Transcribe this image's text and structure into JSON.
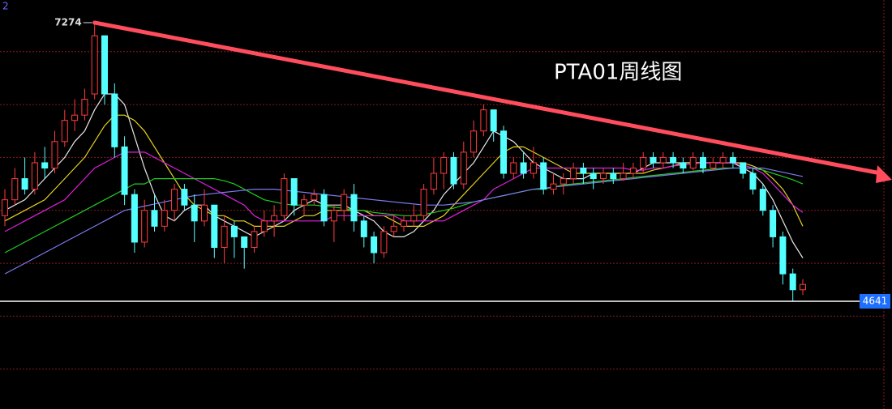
{
  "chart_data": {
    "type": "candlestick",
    "title": "PTA01周线图",
    "panel_id": "2",
    "high_label": "7274",
    "last_label": "4641",
    "ylim": [
      3623,
      7488
    ],
    "grid_lines": [
      7000,
      6500,
      6000,
      5500,
      5000,
      4500,
      4000
    ],
    "up_color": "#ff3b3b",
    "down_color": "#54ffff",
    "open": [
      5450,
      5600,
      5800,
      5700,
      5950,
      5900,
      6150,
      6350,
      6400,
      6600,
      7150,
      6600,
      6100,
      5650,
      5200,
      5500,
      5350,
      5500,
      5700,
      5550,
      5400,
      5550,
      5150,
      5350,
      5250,
      5150,
      5300,
      5400,
      5450,
      5800,
      5550,
      5600,
      5650,
      5400,
      5500,
      5650,
      5400,
      5250,
      5100,
      5300,
      5350,
      5400,
      5450,
      5700,
      5850,
      6000,
      5750,
      6050,
      6250,
      6450,
      6250,
      5850,
      5950,
      5850,
      5950,
      5700,
      5750,
      5800,
      5900,
      5850,
      5800,
      5850,
      5800,
      5850,
      5900,
      6000,
      5950,
      6000,
      5950,
      5900,
      6000,
      5900,
      5950,
      6000,
      5950,
      5850,
      5700,
      5500,
      5250,
      4900,
      4750
    ],
    "high": [
      5700,
      5900,
      6000,
      6050,
      6100,
      6250,
      6450,
      6550,
      6650,
      7274,
      7150,
      6700,
      6200,
      5700,
      5600,
      5650,
      5600,
      5750,
      5750,
      5650,
      5700,
      5550,
      5450,
      5400,
      5250,
      5350,
      5500,
      5550,
      5850,
      5800,
      5650,
      5700,
      5700,
      5550,
      5700,
      5750,
      5450,
      5300,
      5350,
      5450,
      5450,
      5550,
      5750,
      6000,
      6050,
      6050,
      6150,
      6350,
      6500,
      6450,
      6300,
      6000,
      6050,
      6100,
      6000,
      5850,
      5850,
      5950,
      5950,
      5900,
      5900,
      5900,
      5950,
      5950,
      6050,
      6050,
      6050,
      6050,
      6000,
      6050,
      6050,
      6000,
      6050,
      6050,
      5950,
      5900,
      5750,
      5550,
      5300,
      4950,
      4850
    ],
    "low": [
      5350,
      5550,
      5650,
      5650,
      5800,
      5850,
      6100,
      6250,
      6350,
      6550,
      6500,
      6000,
      5550,
      5100,
      5150,
      5300,
      5300,
      5400,
      5500,
      5200,
      5350,
      5050,
      5000,
      5050,
      4950,
      5100,
      5250,
      5250,
      5400,
      5450,
      5450,
      5550,
      5350,
      5200,
      5400,
      5300,
      5150,
      5000,
      5050,
      5250,
      5300,
      5350,
      5400,
      5650,
      5700,
      5700,
      5700,
      6000,
      6200,
      6150,
      5800,
      5800,
      5800,
      5800,
      5650,
      5650,
      5650,
      5750,
      5750,
      5700,
      5750,
      5750,
      5780,
      5800,
      5850,
      5900,
      5900,
      5900,
      5850,
      5880,
      5850,
      5880,
      5900,
      5900,
      5800,
      5650,
      5450,
      5150,
      4800,
      4641,
      4700
    ],
    "close": [
      5600,
      5800,
      5700,
      5950,
      5900,
      6150,
      6350,
      6400,
      6550,
      7150,
      6600,
      6100,
      5650,
      5200,
      5500,
      5350,
      5500,
      5700,
      5550,
      5400,
      5550,
      5150,
      5350,
      5250,
      5150,
      5300,
      5400,
      5450,
      5800,
      5550,
      5600,
      5650,
      5400,
      5500,
      5650,
      5400,
      5250,
      5100,
      5300,
      5350,
      5400,
      5450,
      5700,
      5850,
      6000,
      5750,
      6050,
      6250,
      6450,
      6250,
      5850,
      5950,
      5850,
      5950,
      5700,
      5750,
      5800,
      5900,
      5850,
      5800,
      5850,
      5800,
      5850,
      5900,
      6000,
      5950,
      6000,
      5950,
      5900,
      6000,
      5900,
      5950,
      6000,
      5950,
      5850,
      5700,
      5500,
      5250,
      4900,
      4750,
      4800
    ],
    "series": [
      {
        "color": "#e8e8e8",
        "values": [
          5500,
          5550,
          5600,
          5700,
          5800,
          5900,
          6000,
          6150,
          6250,
          6450,
          6600,
          6600,
          6500,
          6200,
          5900,
          5650,
          5450,
          5400,
          5500,
          5550,
          5550,
          5450,
          5400,
          5350,
          5300,
          5250,
          5300,
          5350,
          5400,
          5500,
          5550,
          5600,
          5550,
          5550,
          5550,
          5500,
          5450,
          5400,
          5300,
          5250,
          5250,
          5300,
          5400,
          5500,
          5650,
          5750,
          5850,
          5950,
          6100,
          6250,
          6200,
          6150,
          6050,
          5950,
          5900,
          5850,
          5800,
          5800,
          5800,
          5850,
          5850,
          5850,
          5850,
          5850,
          5900,
          5950,
          5950,
          5950,
          5950,
          5950,
          5950,
          5950,
          5950,
          5950,
          5900,
          5850,
          5750,
          5600,
          5400,
          5200,
          5050
        ]
      },
      {
        "color": "#e6d21e",
        "values": [
          5400,
          5450,
          5500,
          5550,
          5600,
          5700,
          5800,
          5900,
          6000,
          6150,
          6300,
          6400,
          6400,
          6350,
          6250,
          6100,
          5950,
          5800,
          5650,
          5550,
          5500,
          5450,
          5450,
          5400,
          5400,
          5350,
          5350,
          5350,
          5350,
          5400,
          5450,
          5450,
          5500,
          5500,
          5500,
          5500,
          5500,
          5450,
          5450,
          5400,
          5350,
          5350,
          5350,
          5400,
          5450,
          5550,
          5650,
          5750,
          5850,
          5950,
          6050,
          6100,
          6100,
          6050,
          6000,
          5950,
          5900,
          5850,
          5850,
          5850,
          5850,
          5850,
          5850,
          5850,
          5850,
          5880,
          5900,
          5920,
          5950,
          5950,
          5950,
          5950,
          5950,
          5950,
          5950,
          5920,
          5880,
          5800,
          5700,
          5550,
          5350
        ]
      },
      {
        "color": "#e020e0",
        "values": [
          5300,
          5350,
          5400,
          5450,
          5500,
          5550,
          5600,
          5700,
          5800,
          5900,
          5950,
          6000,
          6050,
          6050,
          6050,
          6000,
          5950,
          5900,
          5850,
          5800,
          5750,
          5700,
          5650,
          5600,
          5550,
          5450,
          5400,
          5400,
          5400,
          5400,
          5400,
          5400,
          5400,
          5450,
          5450,
          5450,
          5450,
          5450,
          5450,
          5450,
          5400,
          5400,
          5400,
          5400,
          5400,
          5450,
          5500,
          5550,
          5600,
          5700,
          5750,
          5800,
          5850,
          5900,
          5900,
          5900,
          5900,
          5900,
          5900,
          5900,
          5900,
          5900,
          5900,
          5880,
          5880,
          5900,
          5900,
          5920,
          5930,
          5940,
          5950,
          5950,
          5950,
          5950,
          5930,
          5900,
          5850,
          5750,
          5650,
          5550,
          5480
        ]
      },
      {
        "color": "#22cc22",
        "values": [
          5100,
          5150,
          5200,
          5250,
          5300,
          5350,
          5400,
          5450,
          5500,
          5550,
          5600,
          5650,
          5700,
          5750,
          5750,
          5800,
          5800,
          5800,
          5800,
          5800,
          5800,
          5800,
          5780,
          5750,
          5700,
          5650,
          5600,
          5580,
          5560,
          5550,
          5550,
          5550,
          5540,
          5530,
          5520,
          5500,
          5500,
          5480,
          5470,
          5460,
          5450,
          5450,
          5460,
          5480,
          5500,
          5520,
          5550,
          5580,
          5600,
          5620,
          5640,
          5660,
          5680,
          5700,
          5700,
          5720,
          5740,
          5750,
          5760,
          5770,
          5780,
          5790,
          5800,
          5810,
          5820,
          5830,
          5840,
          5850,
          5860,
          5870,
          5880,
          5890,
          5900,
          5900,
          5900,
          5900,
          5880,
          5850,
          5820,
          5790,
          5750
        ]
      },
      {
        "color": "#7b7bf0",
        "values": [
          4900,
          4950,
          5000,
          5050,
          5100,
          5150,
          5200,
          5250,
          5300,
          5350,
          5400,
          5450,
          5500,
          5520,
          5540,
          5560,
          5580,
          5600,
          5620,
          5640,
          5650,
          5660,
          5670,
          5680,
          5690,
          5700,
          5700,
          5700,
          5690,
          5680,
          5670,
          5660,
          5650,
          5640,
          5630,
          5620,
          5610,
          5600,
          5590,
          5580,
          5570,
          5560,
          5550,
          5550,
          5550,
          5560,
          5570,
          5580,
          5600,
          5620,
          5640,
          5660,
          5680,
          5700,
          5710,
          5720,
          5730,
          5740,
          5750,
          5760,
          5770,
          5780,
          5790,
          5800,
          5810,
          5820,
          5830,
          5840,
          5850,
          5860,
          5870,
          5880,
          5890,
          5900,
          5900,
          5900,
          5900,
          5880,
          5860,
          5840,
          5820
        ]
      }
    ]
  }
}
